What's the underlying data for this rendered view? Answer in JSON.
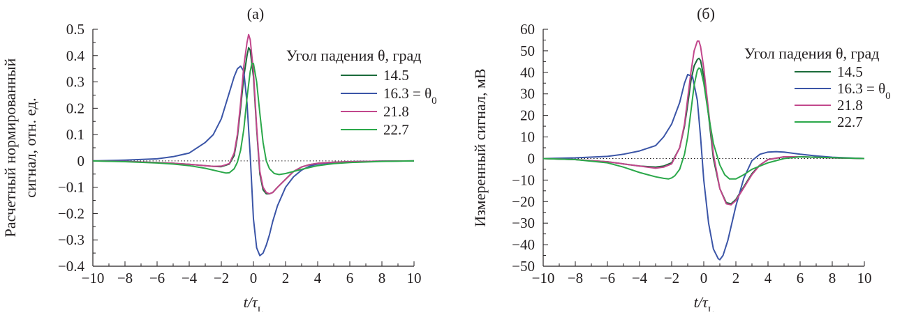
{
  "chart_data": [
    {
      "type": "line",
      "panel_label": "(a)",
      "ylabel_line1": "Расчетный нормированный",
      "ylabel_line2": "сигнал, отн. ед.",
      "xlabel": "t/τL",
      "xlim": [
        -10,
        10
      ],
      "ylim": [
        -0.4,
        0.5
      ],
      "x_ticks": [
        -10,
        -8,
        -6,
        -4,
        -2,
        0,
        2,
        4,
        6,
        8,
        10
      ],
      "x_tick_labels": [
        "−10",
        "−8",
        "−6",
        "−4",
        "−2",
        "0",
        "2",
        "4",
        "6",
        "8",
        "10"
      ],
      "y_ticks": [
        -0.4,
        -0.3,
        -0.2,
        -0.1,
        0,
        0.1,
        0.2,
        0.3,
        0.4,
        0.5
      ],
      "y_tick_labels": [
        "−0.4",
        "−0.3",
        "−0.2",
        "−0.1",
        "0",
        "0.1",
        "0.2",
        "0.3",
        "0.4",
        "0.5"
      ],
      "zero_line": "dotted",
      "legend_title": "Угол падения θ, град",
      "legend_position": "top-right",
      "series": [
        {
          "name": "14.5",
          "color": "#1b6b3a",
          "x": [
            -10,
            -8,
            -6,
            -5,
            -4,
            -3,
            -2.5,
            -2,
            -1.5,
            -1.2,
            -1,
            -0.8,
            -0.6,
            -0.4,
            -0.3,
            -0.2,
            0,
            0.2,
            0.4,
            0.6,
            0.8,
            1,
            1.2,
            1.5,
            2,
            2.5,
            3,
            3.5,
            4,
            5,
            6,
            8,
            10
          ],
          "y": [
            0,
            -0.002,
            -0.006,
            -0.009,
            -0.013,
            -0.018,
            -0.021,
            -0.022,
            -0.012,
            0.02,
            0.09,
            0.2,
            0.32,
            0.4,
            0.43,
            0.42,
            0.32,
            0.12,
            -0.05,
            -0.11,
            -0.125,
            -0.125,
            -0.12,
            -0.1,
            -0.07,
            -0.04,
            -0.023,
            -0.014,
            -0.009,
            -0.005,
            -0.003,
            -0.001,
            0
          ]
        },
        {
          "name": "16.3 = θ0",
          "color": "#3b55a7",
          "x": [
            -10,
            -8,
            -6,
            -5,
            -4,
            -3,
            -2.5,
            -2,
            -1.5,
            -1.2,
            -1,
            -0.8,
            -0.6,
            -0.4,
            -0.2,
            0,
            0.2,
            0.4,
            0.6,
            0.8,
            1,
            1.2,
            1.5,
            2,
            2.5,
            3,
            3.5,
            4,
            5,
            6,
            8,
            10
          ],
          "y": [
            0,
            0.003,
            0.008,
            0.016,
            0.03,
            0.07,
            0.1,
            0.16,
            0.26,
            0.32,
            0.35,
            0.36,
            0.34,
            0.22,
            0.02,
            -0.22,
            -0.33,
            -0.36,
            -0.35,
            -0.32,
            -0.28,
            -0.23,
            -0.17,
            -0.1,
            -0.06,
            -0.035,
            -0.02,
            -0.012,
            -0.006,
            -0.003,
            -0.001,
            0
          ]
        },
        {
          "name": "21.8",
          "color": "#c2478c",
          "x": [
            -10,
            -8,
            -6,
            -5,
            -4,
            -3,
            -2.5,
            -2,
            -1.5,
            -1.2,
            -1,
            -0.8,
            -0.6,
            -0.4,
            -0.3,
            -0.2,
            0,
            0.2,
            0.4,
            0.6,
            0.8,
            1,
            1.2,
            1.5,
            2,
            2.5,
            3,
            3.5,
            4,
            5,
            6,
            8,
            10
          ],
          "y": [
            0,
            -0.002,
            -0.006,
            -0.009,
            -0.013,
            -0.018,
            -0.021,
            -0.02,
            -0.01,
            0.03,
            0.1,
            0.22,
            0.36,
            0.45,
            0.48,
            0.46,
            0.34,
            0.13,
            -0.04,
            -0.1,
            -0.12,
            -0.125,
            -0.12,
            -0.1,
            -0.07,
            -0.04,
            -0.023,
            -0.014,
            -0.009,
            -0.005,
            -0.003,
            -0.001,
            0
          ]
        },
        {
          "name": "22.7",
          "color": "#2ba84a",
          "x": [
            -10,
            -8,
            -6,
            -5,
            -4,
            -3,
            -2.5,
            -2,
            -1.7,
            -1.5,
            -1.2,
            -1,
            -0.8,
            -0.6,
            -0.4,
            -0.2,
            -0.1,
            0,
            0.2,
            0.4,
            0.6,
            0.8,
            1,
            1.3,
            1.6,
            2,
            2.5,
            3,
            4,
            5,
            6,
            8,
            10
          ],
          "y": [
            0,
            -0.003,
            -0.008,
            -0.012,
            -0.018,
            -0.028,
            -0.035,
            -0.042,
            -0.046,
            -0.045,
            -0.03,
            -0.005,
            0.04,
            0.12,
            0.24,
            0.34,
            0.37,
            0.37,
            0.3,
            0.18,
            0.07,
            0.0,
            -0.03,
            -0.048,
            -0.052,
            -0.048,
            -0.04,
            -0.032,
            -0.018,
            -0.01,
            -0.006,
            -0.002,
            0
          ]
        }
      ]
    },
    {
      "type": "line",
      "panel_label": "(б)",
      "ylabel_line1": "Измеренный сигнал, мВ",
      "xlabel": "t/τL",
      "xlim": [
        -10,
        10
      ],
      "ylim": [
        -50,
        60
      ],
      "x_ticks": [
        -10,
        -8,
        -6,
        -4,
        -2,
        0,
        2,
        4,
        6,
        8,
        10
      ],
      "x_tick_labels": [
        "−10",
        "−8",
        "−6",
        "−4",
        "−2",
        "0",
        "2",
        "4",
        "6",
        "8",
        "10"
      ],
      "y_ticks": [
        -50,
        -40,
        -30,
        -20,
        -10,
        0,
        10,
        20,
        30,
        40,
        50,
        60
      ],
      "y_tick_labels": [
        "−50",
        "−40",
        "−30",
        "−20",
        "−10",
        "0",
        "10",
        "20",
        "30",
        "40",
        "50",
        "60"
      ],
      "zero_line": "dotted",
      "legend_title": "Угол падения θ, град",
      "legend_position": "top-right",
      "series": [
        {
          "name": "14.5",
          "color": "#1b6b3a",
          "x": [
            -10,
            -8,
            -6,
            -5,
            -4,
            -3,
            -2.5,
            -2,
            -1.5,
            -1.2,
            -1,
            -0.8,
            -0.6,
            -0.4,
            -0.3,
            -0.2,
            0,
            0.3,
            0.6,
            1,
            1.4,
            1.7,
            2,
            2.5,
            3,
            3.5,
            4,
            5,
            6,
            8,
            10
          ],
          "y": [
            0,
            -0.5,
            -1.5,
            -2.5,
            -3.5,
            -4,
            -3.5,
            -2,
            5,
            15,
            25,
            36,
            43,
            46,
            46.5,
            45.5,
            38,
            20,
            0,
            -14,
            -20.5,
            -21,
            -19,
            -13,
            -7,
            -3,
            -0.5,
            0.8,
            0.8,
            0.3,
            0
          ]
        },
        {
          "name": "16.3 = θ0",
          "color": "#3b55a7",
          "x": [
            -10,
            -8,
            -6,
            -5,
            -4,
            -3,
            -2.5,
            -2,
            -1.5,
            -1.2,
            -1,
            -0.7,
            -0.4,
            -0.2,
            0,
            0.3,
            0.6,
            0.9,
            1,
            1.2,
            1.5,
            2,
            2.5,
            3,
            3.5,
            4,
            4.5,
            5,
            6,
            7,
            8,
            10
          ],
          "y": [
            0,
            0.3,
            1,
            2,
            3.5,
            6,
            10,
            16,
            26,
            35,
            39,
            38,
            27,
            10,
            -10,
            -30,
            -42,
            -46.5,
            -47,
            -45,
            -38,
            -22,
            -9,
            -1,
            2,
            3,
            3.2,
            3,
            2,
            1.2,
            0.6,
            0
          ]
        },
        {
          "name": "21.8",
          "color": "#c2478c",
          "x": [
            -10,
            -8,
            -6,
            -5,
            -4,
            -3,
            -2.5,
            -2,
            -1.5,
            -1.2,
            -1,
            -0.8,
            -0.6,
            -0.4,
            -0.3,
            -0.2,
            0,
            0.3,
            0.6,
            1,
            1.4,
            1.7,
            2,
            2.5,
            3,
            3.5,
            4,
            5,
            6,
            8,
            10
          ],
          "y": [
            0,
            -0.5,
            -1.5,
            -2.5,
            -3.5,
            -4.5,
            -4,
            -2.5,
            5,
            16,
            28,
            40,
            50,
            54.5,
            54.5,
            52,
            42,
            22,
            2,
            -14,
            -21,
            -21.5,
            -19.5,
            -13.5,
            -7.5,
            -3,
            -0.5,
            0.8,
            0.8,
            0.3,
            0
          ]
        },
        {
          "name": "22.7",
          "color": "#2ba84a",
          "x": [
            -10,
            -8,
            -6,
            -5,
            -4,
            -3.5,
            -3,
            -2.5,
            -2.2,
            -2,
            -1.8,
            -1.5,
            -1.2,
            -1,
            -0.8,
            -0.6,
            -0.4,
            -0.3,
            -0.2,
            0,
            0.3,
            0.6,
            1,
            1.3,
            1.6,
            2,
            2.5,
            3,
            4,
            5,
            6,
            8,
            10
          ],
          "y": [
            0,
            -0.5,
            -2,
            -4,
            -6.5,
            -7.5,
            -8.5,
            -9.2,
            -9.5,
            -9,
            -8,
            -5,
            2,
            10,
            22,
            34,
            41,
            42,
            41.5,
            35,
            20,
            7,
            -3,
            -7.5,
            -9.5,
            -9.5,
            -7.5,
            -5,
            -2,
            0,
            0.8,
            0.4,
            0
          ]
        }
      ]
    }
  ]
}
